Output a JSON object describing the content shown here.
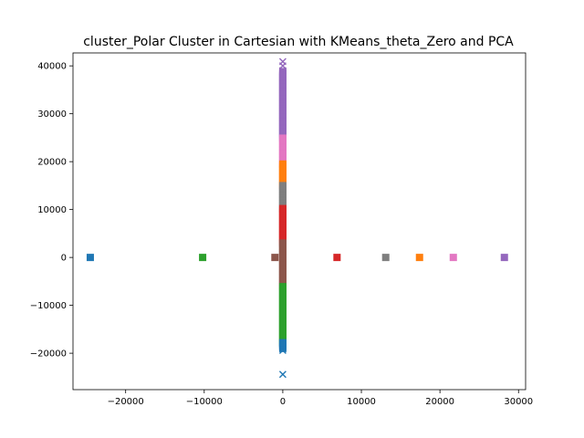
{
  "chart_data": {
    "type": "scatter",
    "title": "cluster_Polar Cluster in Cartesian with KMeans_theta_Zero and PCA",
    "xlabel": "",
    "ylabel": "",
    "xlim": [
      -26700,
      30900
    ],
    "ylim": [
      -27600,
      42700
    ],
    "grid": false,
    "legend": "none",
    "x_ticks": [
      -20000,
      -10000,
      0,
      10000,
      20000,
      30000
    ],
    "x_tick_labels": [
      "−20000",
      "−10000",
      "0",
      "10000",
      "20000",
      "30000"
    ],
    "y_ticks": [
      -20000,
      -10000,
      0,
      10000,
      20000,
      30000,
      40000
    ],
    "y_tick_labels": [
      "−20000",
      "−10000",
      "0",
      "10000",
      "20000",
      "30000",
      "40000"
    ],
    "colors": {
      "blue": "#1f77b4",
      "orange": "#ff7f0e",
      "green": "#2ca02c",
      "red": "#d62728",
      "purple": "#9467bd",
      "brown": "#8c564b",
      "pink": "#e377c2",
      "gray": "#7f7f7f"
    },
    "centroids": {
      "marker": "square",
      "points": [
        {
          "x": -24500,
          "y": 0,
          "color": "blue"
        },
        {
          "x": -10200,
          "y": 0,
          "color": "green"
        },
        {
          "x": -1000,
          "y": 0,
          "color": "brown"
        },
        {
          "x": 6900,
          "y": 0,
          "color": "red"
        },
        {
          "x": 13100,
          "y": 0,
          "color": "gray"
        },
        {
          "x": 17400,
          "y": 0,
          "color": "orange"
        },
        {
          "x": 21700,
          "y": 0,
          "color": "pink"
        },
        {
          "x": 28200,
          "y": 0,
          "color": "purple"
        }
      ]
    },
    "clusters": [
      {
        "color": "purple",
        "marker": "square",
        "x": 0,
        "y_range": [
          25000,
          39000
        ]
      },
      {
        "color": "pink",
        "marker": "square",
        "x": 0,
        "y_range": [
          19500,
          25000
        ]
      },
      {
        "color": "orange",
        "marker": "square",
        "x": 0,
        "y_range": [
          15000,
          19500
        ]
      },
      {
        "color": "gray",
        "marker": "square",
        "x": 0,
        "y_range": [
          10200,
          15000
        ]
      },
      {
        "color": "red",
        "marker": "square",
        "x": 0,
        "y_range": [
          3000,
          10200
        ]
      },
      {
        "color": "brown",
        "marker": "square",
        "x": 0,
        "y_range": [
          -6000,
          3000
        ]
      },
      {
        "color": "green",
        "marker": "square",
        "x": 0,
        "y_range": [
          -17800,
          -6000
        ]
      },
      {
        "color": "blue",
        "marker": "square",
        "x": 0,
        "y_range": [
          -19000,
          -17800
        ]
      }
    ],
    "outliers": {
      "marker": "x",
      "points": [
        {
          "x": 0,
          "y": 40900,
          "color": "purple"
        },
        {
          "x": 0,
          "y": 40000,
          "color": "purple"
        },
        {
          "x": 0,
          "y": 39000,
          "color": "purple"
        },
        {
          "x": 0,
          "y": -19400,
          "color": "blue"
        },
        {
          "x": 0,
          "y": -24400,
          "color": "blue"
        }
      ]
    }
  }
}
